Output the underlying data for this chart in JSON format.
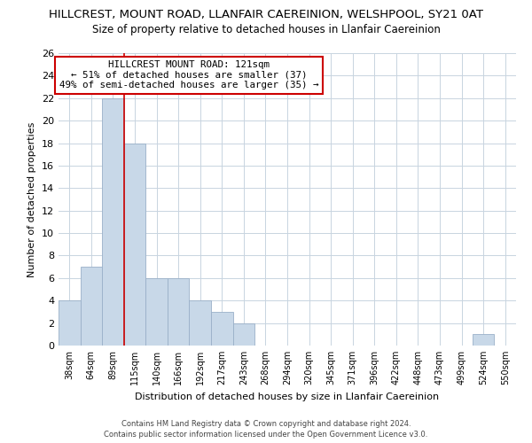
{
  "title": "HILLCREST, MOUNT ROAD, LLANFAIR CAEREINION, WELSHPOOL, SY21 0AT",
  "subtitle": "Size of property relative to detached houses in Llanfair Caereinion",
  "xlabel": "Distribution of detached houses by size in Llanfair Caereinion",
  "ylabel": "Number of detached properties",
  "bin_labels": [
    "38sqm",
    "64sqm",
    "89sqm",
    "115sqm",
    "140sqm",
    "166sqm",
    "192sqm",
    "217sqm",
    "243sqm",
    "268sqm",
    "294sqm",
    "320sqm",
    "345sqm",
    "371sqm",
    "396sqm",
    "422sqm",
    "448sqm",
    "473sqm",
    "499sqm",
    "524sqm",
    "550sqm"
  ],
  "bar_values": [
    4,
    7,
    22,
    18,
    6,
    6,
    4,
    3,
    2,
    0,
    0,
    0,
    0,
    0,
    0,
    0,
    0,
    0,
    0,
    1,
    0
  ],
  "bar_color": "#c8d8e8",
  "bar_edge_color": "#9ab0c8",
  "property_line_color": "#cc0000",
  "property_line_bin": 3,
  "ylim": [
    0,
    26
  ],
  "yticks": [
    0,
    2,
    4,
    6,
    8,
    10,
    12,
    14,
    16,
    18,
    20,
    22,
    24,
    26
  ],
  "annotation_title": "HILLCREST MOUNT ROAD: 121sqm",
  "annotation_line1": "← 51% of detached houses are smaller (37)",
  "annotation_line2": "49% of semi-detached houses are larger (35) →",
  "annotation_box_color": "#ffffff",
  "annotation_box_edge": "#cc0000",
  "footer_line1": "Contains HM Land Registry data © Crown copyright and database right 2024.",
  "footer_line2": "Contains public sector information licensed under the Open Government Licence v3.0.",
  "background_color": "#ffffff",
  "grid_color": "#c8d4e0",
  "title_fontsize": 9.5,
  "subtitle_fontsize": 8.5
}
